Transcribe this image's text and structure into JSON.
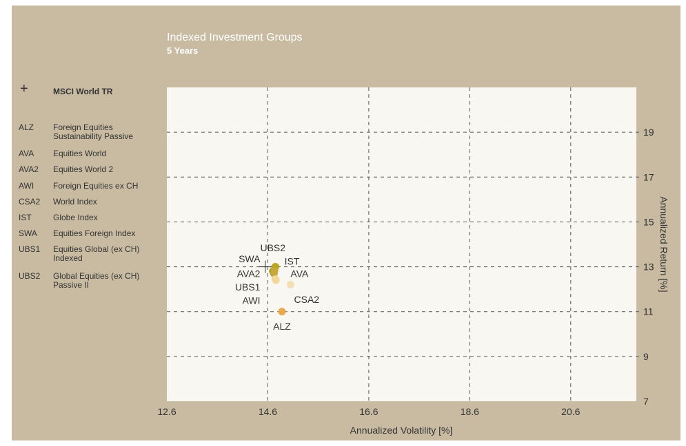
{
  "chart_data": {
    "type": "scatter",
    "title": "Indexed Investment Groups",
    "subtitle": "5 Years",
    "xlabel": "Annualized Volatility [%]",
    "ylabel": "Annualized Return [%]",
    "xlim": [
      12.6,
      21.9
    ],
    "ylim": [
      7,
      21
    ],
    "xticks": [
      12.6,
      14.6,
      16.6,
      18.6,
      20.6
    ],
    "yticks": [
      7,
      9,
      11,
      13,
      15,
      17,
      19
    ],
    "grid": true,
    "y_axis_position": "right",
    "benchmark": {
      "symbol": "+",
      "name": "MSCI World TR",
      "x": 14.55,
      "y": 13.0
    },
    "points": [
      {
        "code": "UBS2",
        "x": 14.75,
        "y": 13.0,
        "color": "#b9a521"
      },
      {
        "code": "IST",
        "x": 14.75,
        "y": 13.0,
        "color": "#b9a521"
      },
      {
        "code": "SWA",
        "x": 14.7,
        "y": 12.8,
        "color": "#a89a1c"
      },
      {
        "code": "AVA2",
        "x": 14.72,
        "y": 12.7,
        "color": "#bba43a"
      },
      {
        "code": "AVA",
        "x": 14.73,
        "y": 12.8,
        "color": "#c9a83a"
      },
      {
        "code": "UBS1",
        "x": 14.75,
        "y": 12.45,
        "color": "#f1d89a"
      },
      {
        "code": "AWI",
        "x": 14.76,
        "y": 12.4,
        "color": "#f1d89a"
      },
      {
        "code": "CSA2",
        "x": 15.05,
        "y": 12.2,
        "color": "#f3dfb3"
      },
      {
        "code": "ALZ",
        "x": 14.88,
        "y": 11.0,
        "color": "#eba94e"
      }
    ],
    "labels": [
      {
        "text": "UBS2",
        "x": 14.7,
        "y": 13.85,
        "anchor": "middle"
      },
      {
        "text": "SWA",
        "x": 14.45,
        "y": 13.35,
        "anchor": "end"
      },
      {
        "text": "IST",
        "x": 14.93,
        "y": 13.25,
        "anchor": "start"
      },
      {
        "text": "AVA2",
        "x": 14.45,
        "y": 12.7,
        "anchor": "end"
      },
      {
        "text": "AVA",
        "x": 15.05,
        "y": 12.7,
        "anchor": "start"
      },
      {
        "text": "UBS1",
        "x": 14.45,
        "y": 12.1,
        "anchor": "end"
      },
      {
        "text": "AWI",
        "x": 14.45,
        "y": 11.5,
        "anchor": "end"
      },
      {
        "text": "CSA2",
        "x": 15.12,
        "y": 11.55,
        "anchor": "start"
      },
      {
        "text": "ALZ",
        "x": 14.88,
        "y": 10.35,
        "anchor": "middle"
      }
    ],
    "legend": [
      {
        "code": "ALZ",
        "name": "Foreign Equities Sustainability Passive"
      },
      {
        "code": "AVA",
        "name": "Equities World"
      },
      {
        "code": "AVA2",
        "name": "Equities World 2"
      },
      {
        "code": "AWI",
        "name": "Foreign Equities ex CH"
      },
      {
        "code": "CSA2",
        "name": "World Index"
      },
      {
        "code": "IST",
        "name": "Globe Index"
      },
      {
        "code": "SWA",
        "name": "Equities Foreign Index"
      },
      {
        "code": "UBS1",
        "name": "Equities Global (ex CH) Indexed"
      },
      {
        "code": "UBS2",
        "name": "Global Equities (ex CH) Passive II"
      }
    ]
  }
}
